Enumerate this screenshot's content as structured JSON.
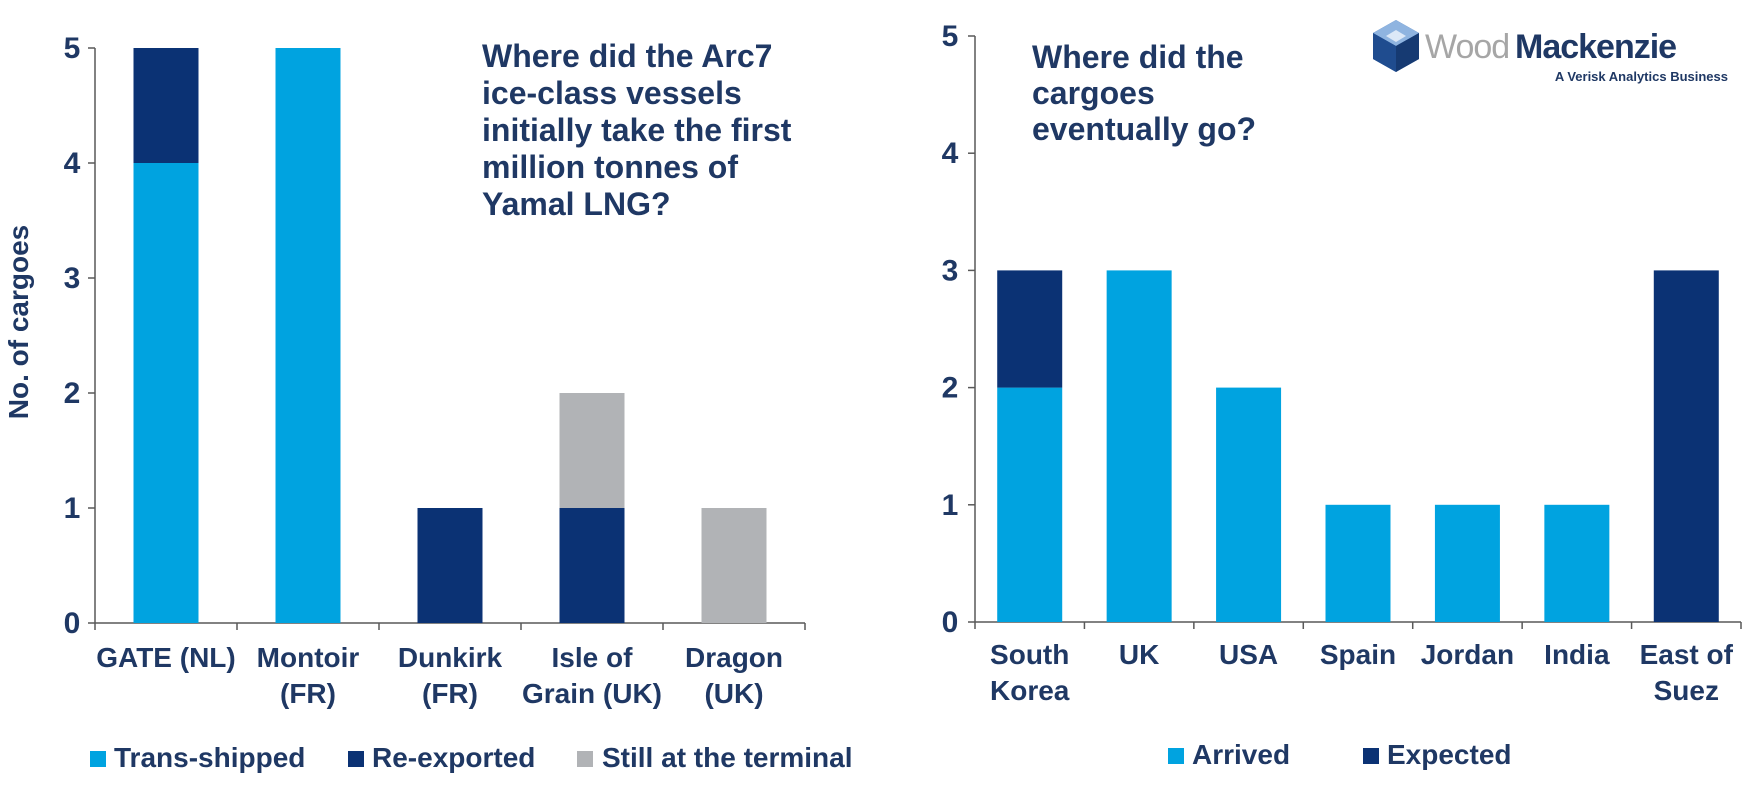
{
  "colors": {
    "text": "#1f3864",
    "light_blue": "#00a3e0",
    "dark_blue": "#0b3274",
    "grey": "#b1b3b6",
    "axis": "#595959",
    "logo_grey": "#a6a6a6"
  },
  "logo": {
    "word1": "Wood",
    "word2": "Mackenzie",
    "tagline": "A Verisk Analytics Business"
  },
  "chart_data": [
    {
      "type": "bar",
      "stacked": true,
      "title": "Where did the Arc7 ice-class vessels initially take the first million tonnes of Yamal LNG?",
      "title_lines": [
        "Where did the Arc7",
        "ice-class vessels",
        "initially take the first",
        "million tonnes of",
        "Yamal LNG?"
      ],
      "ylabel": "No. of cargoes",
      "xlabel": "",
      "ylim": [
        0,
        5
      ],
      "yticks": [
        0,
        1,
        2,
        3,
        4,
        5
      ],
      "categories": [
        "GATE (NL)",
        "Montoir (FR)",
        "Dunkirk (FR)",
        "Isle of Grain (UK)",
        "Dragon (UK)"
      ],
      "category_lines": [
        [
          "GATE (NL)"
        ],
        [
          "Montoir",
          "(FR)"
        ],
        [
          "Dunkirk",
          "(FR)"
        ],
        [
          "Isle of",
          "Grain (UK)"
        ],
        [
          "Dragon",
          "(UK)"
        ]
      ],
      "series": [
        {
          "name": "Trans-shipped",
          "color": "#00a3e0",
          "values": [
            4,
            5,
            0,
            0,
            0
          ]
        },
        {
          "name": "Re-exported",
          "color": "#0b3274",
          "values": [
            1,
            0,
            1,
            1,
            0
          ]
        },
        {
          "name": "Still at the terminal",
          "color": "#b1b3b6",
          "values": [
            0,
            0,
            0,
            1,
            1
          ]
        }
      ],
      "legend": "bottom",
      "grid": false
    },
    {
      "type": "bar",
      "stacked": true,
      "title": "Where did the cargoes eventually go?",
      "title_lines": [
        "Where did the",
        "cargoes",
        "eventually go?"
      ],
      "ylabel": "",
      "xlabel": "",
      "ylim": [
        0,
        5
      ],
      "yticks": [
        0,
        1,
        2,
        3,
        4,
        5
      ],
      "categories": [
        "South Korea",
        "UK",
        "USA",
        "Spain",
        "Jordan",
        "India",
        "East of Suez"
      ],
      "category_lines": [
        [
          "South",
          "Korea"
        ],
        [
          "UK"
        ],
        [
          "USA"
        ],
        [
          "Spain"
        ],
        [
          "Jordan"
        ],
        [
          "India"
        ],
        [
          "East of",
          "Suez"
        ]
      ],
      "series": [
        {
          "name": "Arrived",
          "color": "#00a3e0",
          "values": [
            2,
            3,
            2,
            1,
            1,
            1,
            0
          ]
        },
        {
          "name": "Expected",
          "color": "#0b3274",
          "values": [
            1,
            0,
            0,
            0,
            0,
            0,
            3
          ]
        }
      ],
      "legend": "bottom",
      "grid": false
    }
  ]
}
